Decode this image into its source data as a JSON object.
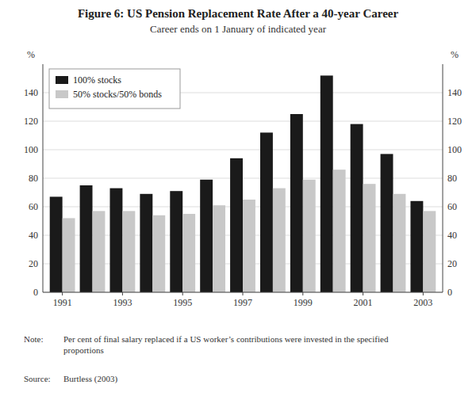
{
  "chart_data": {
    "type": "bar",
    "title": "Figure 6: US Pension Replacement Rate After a 40-year Career",
    "subtitle": "Career ends on 1 January of indicated year",
    "categories": [
      "1991",
      null,
      "1993",
      null,
      "1995",
      null,
      "1997",
      null,
      "1999",
      null,
      "2001",
      null,
      "2003"
    ],
    "series": [
      {
        "name": "100% stocks",
        "color": "#1a1a1a",
        "values": [
          67,
          75,
          73,
          69,
          71,
          79,
          94,
          112,
          125,
          152,
          118,
          97,
          64
        ]
      },
      {
        "name": "50% stocks/50% bonds",
        "color": "#c8c8c8",
        "values": [
          52,
          57,
          57,
          54,
          55,
          61,
          65,
          73,
          79,
          86,
          76,
          69,
          57
        ]
      }
    ],
    "y_label": "%",
    "y2_label": "%",
    "ylim": [
      0,
      160
    ],
    "yticks": [
      0,
      20,
      40,
      60,
      80,
      100,
      120,
      140
    ],
    "y2lim": [
      0,
      160
    ],
    "y2ticks": [
      0,
      20,
      40,
      60,
      80,
      100,
      120,
      140
    ],
    "grid": true,
    "legend": "upper left",
    "annotations": [
      {
        "label": "Note:",
        "text": "Per cent of final salary replaced if a US worker’s contributions were invested in the specified\nproportions"
      },
      {
        "label": "Source:",
        "text": "Burtless (2003)"
      }
    ]
  }
}
